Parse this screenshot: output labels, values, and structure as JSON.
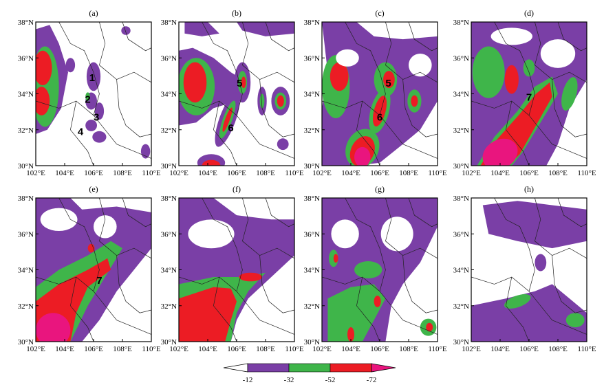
{
  "colors": {
    "purple": "#7a3fa6",
    "green": "#3fb54a",
    "red": "#ec1c24",
    "magenta": "#e9157e"
  },
  "lat_labels": [
    "38°N",
    "36°N",
    "34°N",
    "32°N",
    "30°N"
  ],
  "lon_labels": [
    "102°E",
    "104°E",
    "106°E",
    "108°E",
    "110°E"
  ],
  "panels": [
    {
      "label": "(a)",
      "numbers": [
        {
          "text": "1",
          "lon": 105.9,
          "lat": 34.9
        },
        {
          "text": "2",
          "lon": 105.6,
          "lat": 33.7
        },
        {
          "text": "3",
          "lon": 106.2,
          "lat": 32.7
        },
        {
          "text": "4",
          "lon": 105.1,
          "lat": 31.9
        }
      ]
    },
    {
      "label": "(b)",
      "numbers": [
        {
          "text": "5",
          "lon": 106.2,
          "lat": 34.6
        },
        {
          "text": "6",
          "lon": 105.6,
          "lat": 32.1
        }
      ]
    },
    {
      "label": "(c)",
      "numbers": [
        {
          "text": "5",
          "lon": 106.6,
          "lat": 34.6
        },
        {
          "text": "6",
          "lon": 106.0,
          "lat": 32.7
        }
      ]
    },
    {
      "label": "(d)",
      "numbers": [
        {
          "text": "7",
          "lon": 106.0,
          "lat": 33.8
        }
      ]
    },
    {
      "label": "(e)",
      "numbers": [
        {
          "text": "7",
          "lon": 106.4,
          "lat": 33.4
        }
      ]
    },
    {
      "label": "(f)",
      "numbers": []
    },
    {
      "label": "(g)",
      "numbers": []
    },
    {
      "label": "(h)",
      "numbers": []
    }
  ],
  "colorbar": {
    "labels": [
      "-12",
      "-32",
      "-52",
      "-72"
    ]
  }
}
